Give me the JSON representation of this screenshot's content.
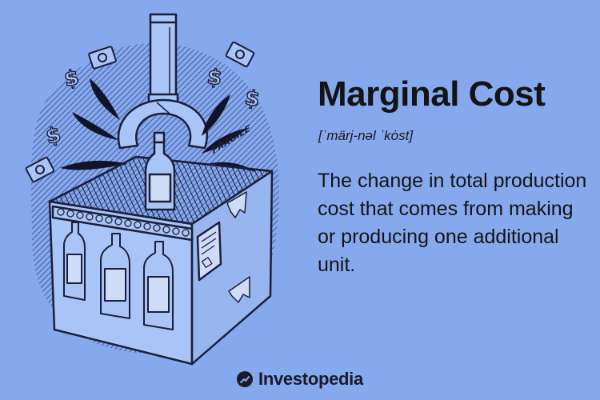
{
  "illustration": {
    "box_label": "FRAGILE",
    "icons": [
      "dollar-sign-icon",
      "banknote-icon",
      "robotic-claw-icon",
      "bottle-icon",
      "cardboard-box-icon",
      "motion-splash-icon"
    ]
  },
  "header": {
    "title": "Marginal Cost",
    "pronunciation": "[ˈmärj-nəl ˈkȯst]"
  },
  "definition": "The change in total production cost that comes from making or producing one additional unit.",
  "brand": {
    "name": "Investopedia",
    "logo_icon": "investopedia-logo-icon"
  },
  "colors": {
    "background": "#86a9ee",
    "illustration_fill": "#a9c4f6",
    "line": "#1a1f3a",
    "text": "#141414"
  }
}
